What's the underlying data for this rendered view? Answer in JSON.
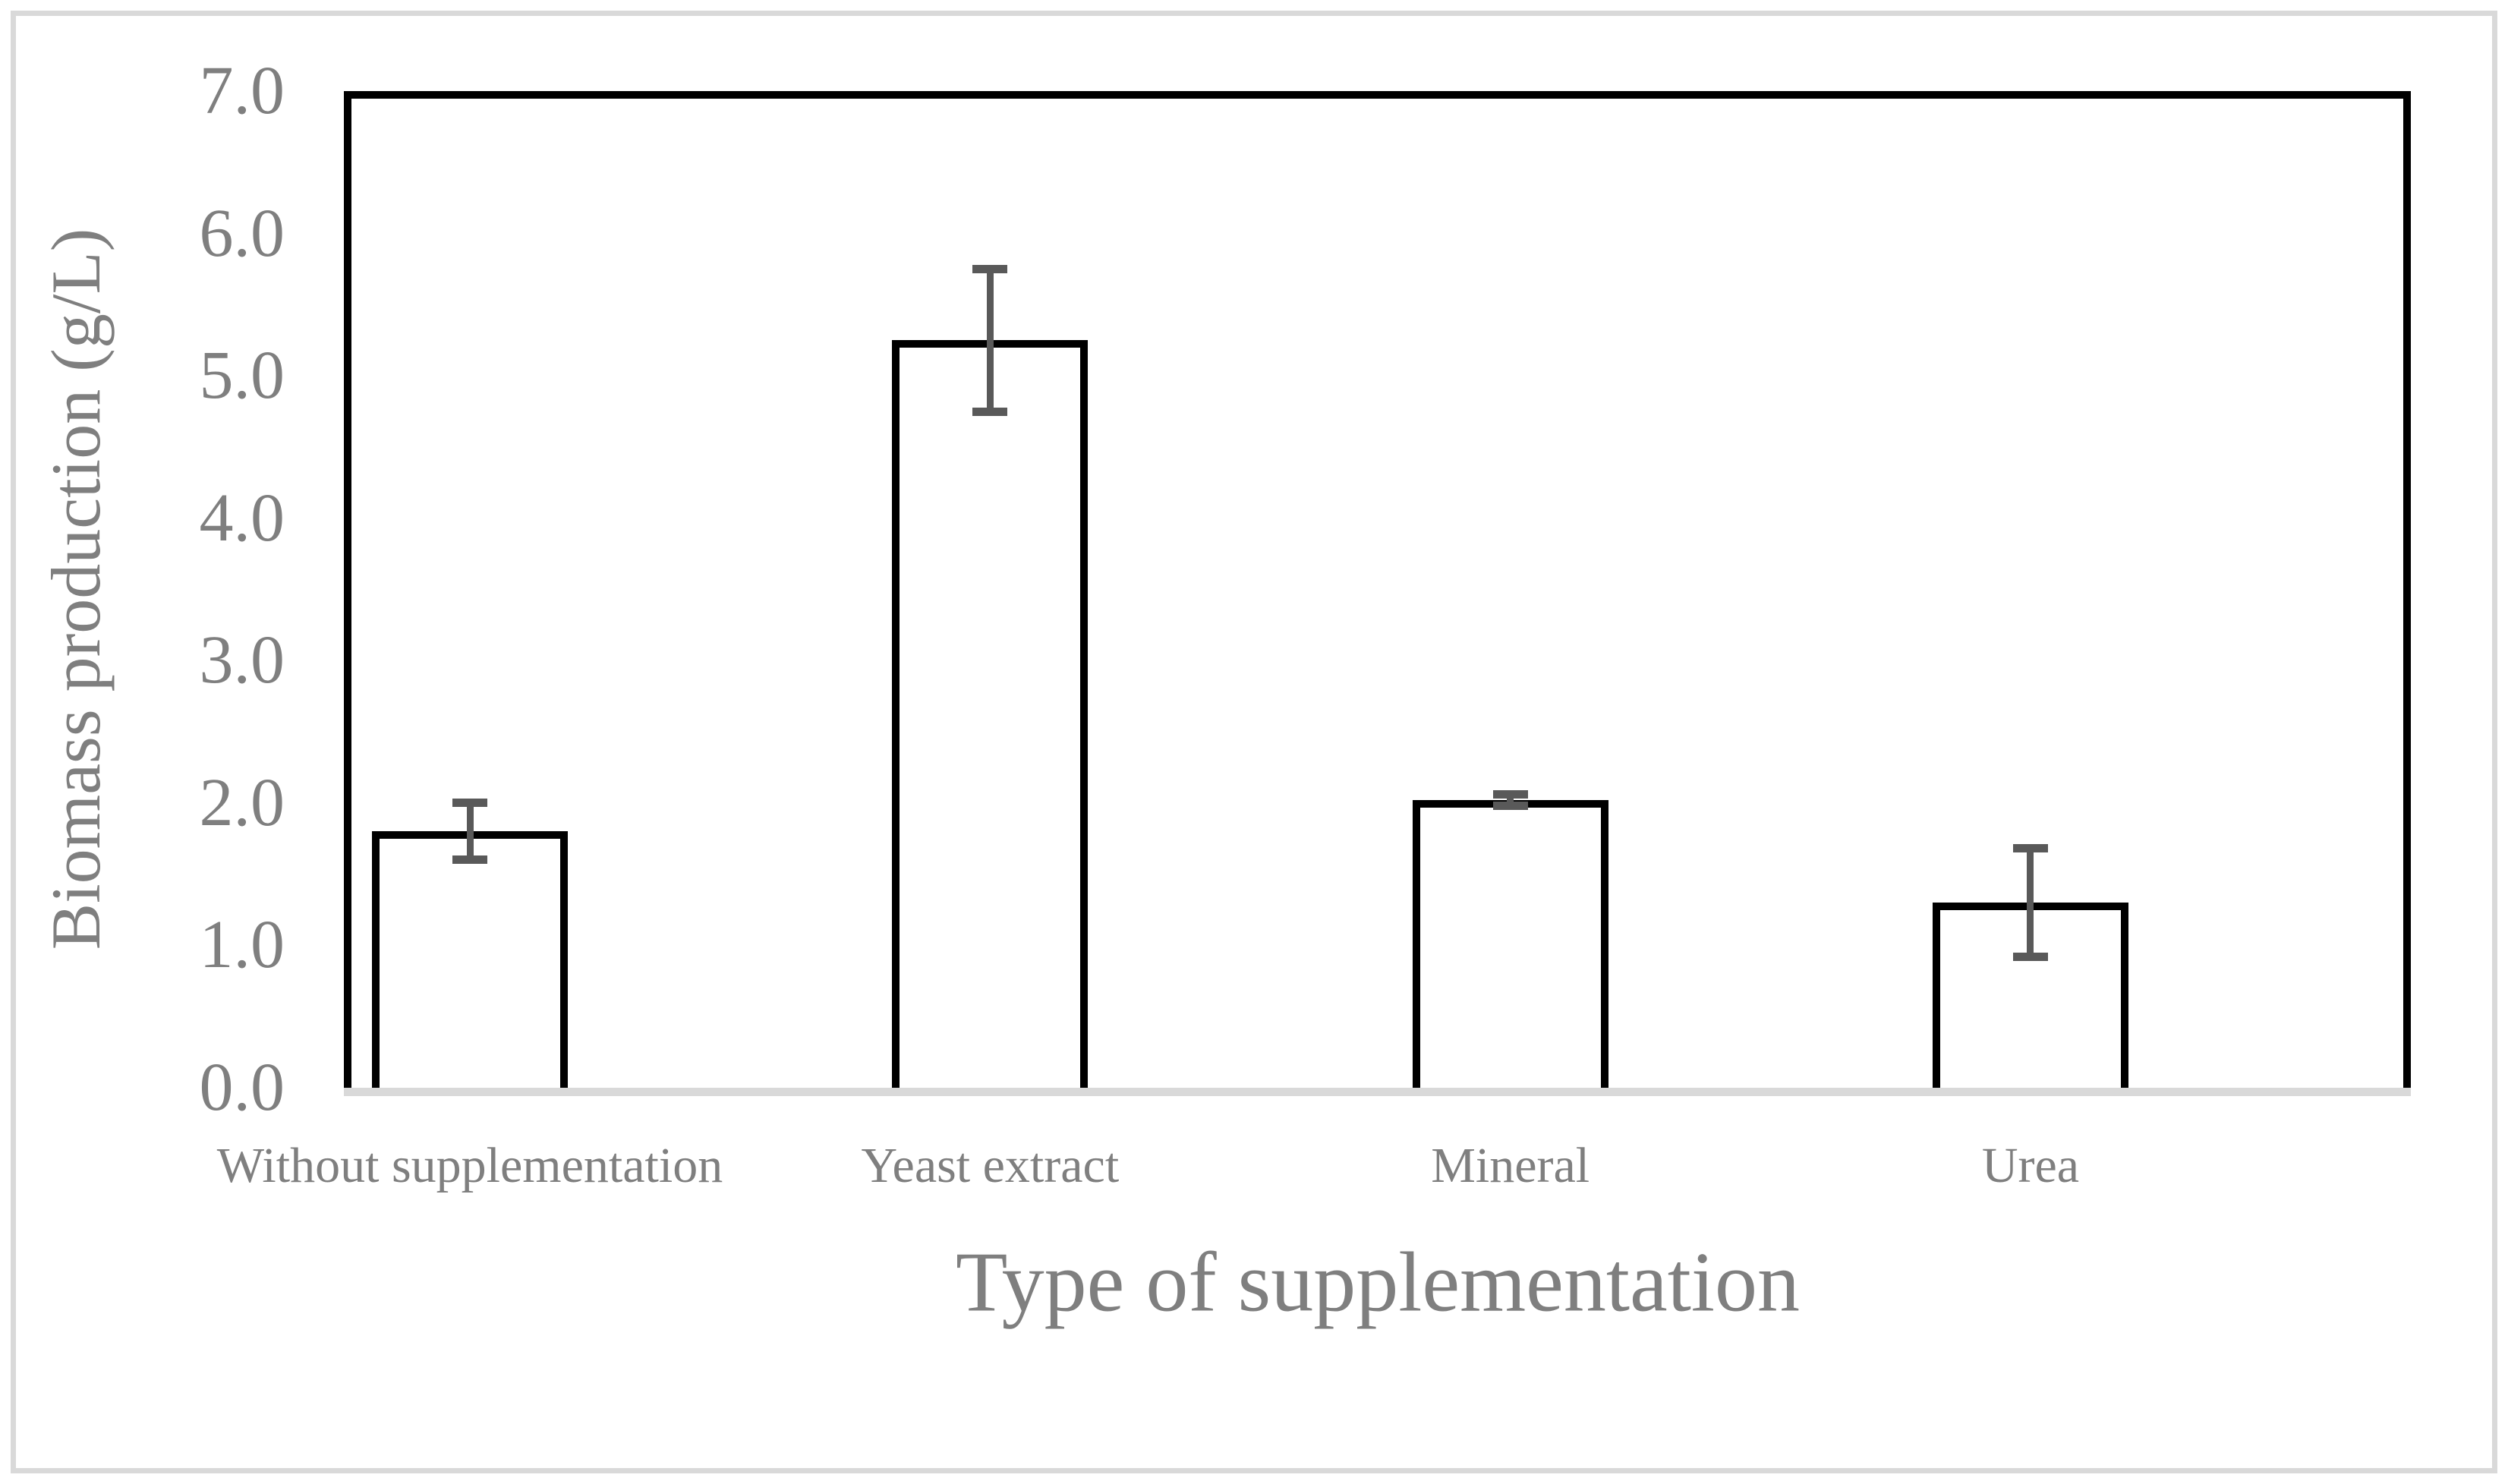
{
  "figure": {
    "y_axis_title": "Biomass production (g/L)",
    "x_axis_title": "Type of supplementation"
  },
  "chart_data": {
    "type": "bar",
    "title": "",
    "xlabel": "Type of supplementation",
    "ylabel": "Biomass production (g/L)",
    "categories": [
      "Without supplementation",
      "Yeast extract",
      "Mineral",
      "Urea"
    ],
    "values": [
      1.8,
      5.25,
      2.02,
      1.3
    ],
    "error_bars": [
      0.2,
      0.5,
      0.04,
      0.38
    ],
    "ylim": [
      0.0,
      7.0
    ],
    "ytick_interval": 1.0,
    "ytick_labels": [
      "7.0",
      "6.0",
      "5.0",
      "4.0",
      "3.0",
      "2.0",
      "1.0",
      "0.0"
    ],
    "grid": false,
    "legend": false,
    "colors": {
      "bar_fill": "#ffffff",
      "bar_border": "#000000",
      "error_bar": "#595959",
      "axis_baseline": "#d9d9d9",
      "figure_border": "#d9d9d9",
      "label_text": "#7f7f7f",
      "background": "#ffffff"
    }
  }
}
